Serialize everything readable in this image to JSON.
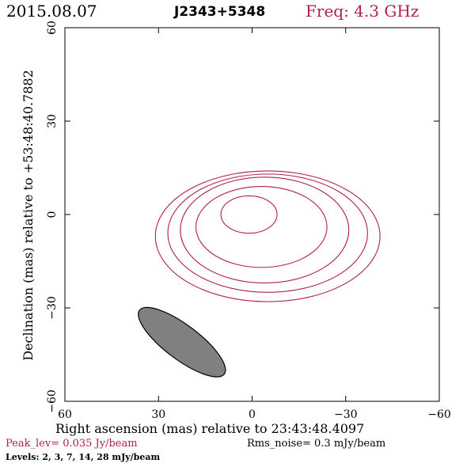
{
  "header": {
    "date": "2015.08.07",
    "source": "J2343+5348",
    "freq": "Freq: 4.3 GHz"
  },
  "chart_data": {
    "type": "contour",
    "xlabel": "Right ascension (mas) relative to 23:43:48.4097",
    "ylabel": "Declination (mas) relative to +53:48:40.7882",
    "xlim": [
      60,
      -60
    ],
    "ylim": [
      -60,
      60
    ],
    "xticks": [
      60,
      30,
      0,
      -30,
      -60
    ],
    "yticks": [
      -60,
      -30,
      0,
      30,
      60
    ],
    "xtick_labels": [
      "60",
      "30",
      "0",
      "−30",
      "−60"
    ],
    "ytick_labels": [
      "−60",
      "−30",
      "0",
      "30",
      "60"
    ],
    "contour_color": "#b0204a",
    "contours": [
      {
        "level_mJy": 28,
        "center": [
          1,
          0
        ],
        "semi_major": 9,
        "semi_minor": 6,
        "pa_deg": 50
      },
      {
        "level_mJy": 14,
        "center": [
          -3,
          -4
        ],
        "semi_major": 21,
        "semi_minor": 13,
        "pa_deg": 50
      },
      {
        "level_mJy": 7,
        "center": [
          -4,
          -5
        ],
        "semi_major": 27,
        "semi_minor": 17,
        "pa_deg": 50
      },
      {
        "level_mJy": 3,
        "center": [
          -5,
          -6
        ],
        "semi_major": 32,
        "semi_minor": 19,
        "pa_deg": 50
      },
      {
        "level_mJy": 2,
        "center": [
          -5,
          -7
        ],
        "semi_major": 36,
        "semi_minor": 21,
        "pa_deg": 50
      }
    ],
    "beam": {
      "center": [
        22.5,
        -41
      ],
      "semi_major": 17,
      "semi_minor": 5.5,
      "pa_deg": 50,
      "fill": "#808080"
    },
    "peak_level": "Peak_lev=  0.035 Jy/beam",
    "rms_noise": "Rms_noise=   0.3  mJy/beam",
    "levels": "Levels:   2,   3,   7,  14,  28 mJy/beam"
  }
}
